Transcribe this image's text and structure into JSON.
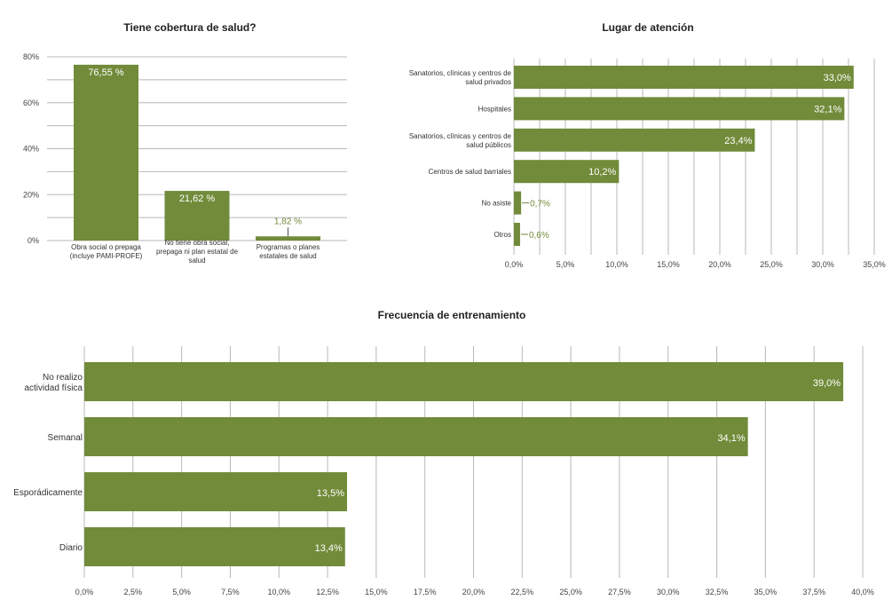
{
  "colors": {
    "bar": "#718b3a",
    "grid": "#b8b8b8",
    "text": "#333333"
  },
  "chart_data": [
    {
      "type": "bar",
      "orientation": "vertical",
      "title": "Tiene cobertura de salud?",
      "xlabel": "",
      "ylabel": "",
      "ylim": [
        0,
        80
      ],
      "grid": true,
      "y_ticks": [
        "0%",
        "20%",
        "40%",
        "60%",
        "80%"
      ],
      "categories": [
        [
          "Obra social o prepaga",
          "(incluye PAMI-PROFE)"
        ],
        [
          "No tiene obra social,",
          "prepaga ni plan estatal de",
          "salud"
        ],
        [
          "Programas o planes",
          "estatales de salud"
        ]
      ],
      "values": [
        76.55,
        21.62,
        1.82
      ],
      "data_labels": [
        "76,55 %",
        "21,62 %",
        "1,82 %"
      ]
    },
    {
      "type": "bar",
      "orientation": "horizontal",
      "title": "Lugar de atención",
      "xlabel": "",
      "ylabel": "",
      "xlim": [
        0,
        35
      ],
      "grid": true,
      "x_ticks": [
        "0,0%",
        "5,0%",
        "10,0%",
        "15,0%",
        "20,0%",
        "25,0%",
        "30,0%",
        "35,0%"
      ],
      "categories": [
        [
          "Sanatorios, clínicas y centros de",
          "salud privados"
        ],
        [
          "Hospitales"
        ],
        [
          "Sanatorios, clínicas y centros de",
          "salud públicos"
        ],
        [
          "Centros de salud barriales"
        ],
        [
          "No asiste"
        ],
        [
          "Otros"
        ]
      ],
      "values": [
        33.0,
        32.1,
        23.4,
        10.2,
        0.7,
        0.6
      ],
      "data_labels": [
        "33,0%",
        "32,1%",
        "23,4%",
        "10,2%",
        "0,7%",
        "0,6%"
      ]
    },
    {
      "type": "bar",
      "orientation": "horizontal",
      "title": "Frecuencia de entrenamiento",
      "xlabel": "",
      "ylabel": "",
      "xlim": [
        0,
        40
      ],
      "grid": true,
      "x_ticks": [
        "0,0%",
        "2,5%",
        "5,0%",
        "7,5%",
        "10,0%",
        "12,5%",
        "15,0%",
        "17,5%",
        "20,0%",
        "22,5%",
        "25,0%",
        "27,5%",
        "30,0%",
        "32,5%",
        "35,0%",
        "37,5%",
        "40,0%"
      ],
      "categories": [
        [
          "No realizo",
          "actividad física"
        ],
        [
          "Semanal"
        ],
        [
          "Esporádicamente"
        ],
        [
          "Diario"
        ]
      ],
      "values": [
        39.0,
        34.1,
        13.5,
        13.4
      ],
      "data_labels": [
        "39,0%",
        "34,1%",
        "13,5%",
        "13,4%"
      ]
    }
  ]
}
